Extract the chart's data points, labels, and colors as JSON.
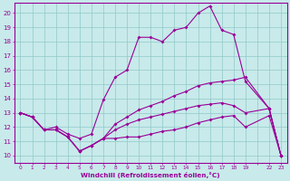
{
  "ylim": [
    9.5,
    20.7
  ],
  "yticks": [
    10,
    11,
    12,
    13,
    14,
    15,
    16,
    17,
    18,
    19,
    20
  ],
  "xlabel": "Windchill (Refroidissement éolien,°C)",
  "bg_color": "#c8eaea",
  "grid_color": "#90c8c8",
  "line_color": "#990099",
  "x_labels": [
    "0",
    "1",
    "2",
    "3",
    "4",
    "5",
    "6",
    "7",
    "8",
    "9",
    "10",
    "11",
    "12",
    "13",
    "14",
    "15",
    "16",
    "17",
    "18",
    "19",
    "",
    "22",
    "23"
  ],
  "n_cols": 23,
  "line2_pos": [
    0,
    1,
    2,
    3,
    4,
    5,
    6,
    7,
    8,
    9,
    10,
    11,
    12,
    13,
    14,
    15,
    16,
    17,
    18,
    19,
    21,
    22
  ],
  "line2_y": [
    13,
    12.7,
    11.8,
    12.0,
    11.5,
    11.2,
    11.5,
    13.9,
    15.5,
    16.0,
    18.3,
    18.3,
    18.0,
    18.8,
    19.0,
    20.0,
    20.5,
    18.8,
    18.5,
    15.2,
    13.3,
    10.0
  ],
  "line1_pos": [
    0,
    1,
    2,
    3,
    4,
    5,
    6,
    7,
    8,
    9,
    10,
    11,
    12,
    13,
    14,
    15,
    16,
    17,
    18,
    19,
    21,
    22
  ],
  "line1_y": [
    13,
    12.7,
    11.8,
    11.8,
    11.3,
    10.3,
    10.7,
    11.2,
    11.2,
    11.3,
    11.3,
    11.5,
    11.7,
    11.8,
    12.0,
    12.3,
    12.5,
    12.7,
    12.8,
    12.0,
    12.8,
    10.0
  ],
  "line3_pos": [
    0,
    1,
    2,
    3,
    4,
    5,
    6,
    7,
    8,
    9,
    10,
    11,
    12,
    13,
    14,
    15,
    16,
    17,
    18,
    19,
    21,
    22
  ],
  "line3_y": [
    13,
    12.7,
    11.8,
    11.8,
    11.3,
    10.3,
    10.7,
    11.2,
    12.2,
    12.7,
    13.2,
    13.5,
    13.8,
    14.2,
    14.5,
    14.9,
    15.1,
    15.2,
    15.3,
    15.5,
    13.3,
    10.0
  ],
  "line4_pos": [
    0,
    1,
    2,
    3,
    4,
    5,
    6,
    7,
    8,
    9,
    10,
    11,
    12,
    13,
    14,
    15,
    16,
    17,
    18,
    19,
    21,
    22
  ],
  "line4_y": [
    13,
    12.7,
    11.8,
    11.8,
    11.3,
    10.3,
    10.7,
    11.2,
    11.8,
    12.2,
    12.5,
    12.7,
    12.9,
    13.1,
    13.3,
    13.5,
    13.6,
    13.7,
    13.5,
    13.0,
    13.3,
    10.0
  ]
}
